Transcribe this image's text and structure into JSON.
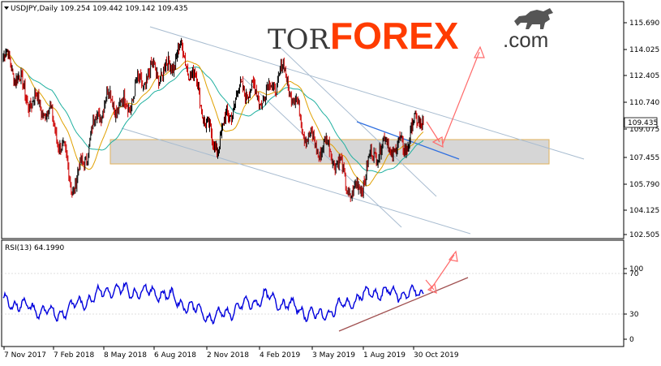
{
  "chart_data": [
    {
      "type": "candlestick",
      "symbol": "USDJPY",
      "timeframe": "Daily",
      "header": "USDJPY,Daily  109.254 109.442 109.142 109.435",
      "ohlc": {
        "open": 109.254,
        "high": 109.442,
        "low": 109.142,
        "close": 109.435
      },
      "last_price_label": "109.435",
      "ylim": [
        102.505,
        116.8
      ],
      "y_ticks": [
        "115.690",
        "114.025",
        "112.405",
        "110.740",
        "109.075",
        "107.455",
        "105.790",
        "104.125",
        "102.505"
      ],
      "x_ticks": [
        "7 Nov 2017",
        "7 Feb 2018",
        "8 May 2018",
        "6 Aug 2018",
        "2 Nov 2018",
        "4 Feb 2019",
        "3 May 2019",
        "1 Aug 2019",
        "30 Oct 2019"
      ],
      "key_prices": [
        {
          "date": "Nov 2017",
          "close": 113.0
        },
        {
          "date": "Jan 2018",
          "close": 111.0
        },
        {
          "date": "Mar 2018",
          "close": 106.0
        },
        {
          "date": "May 2018",
          "close": 110.8
        },
        {
          "date": "Aug 2018",
          "close": 111.5
        },
        {
          "date": "Oct 2018",
          "close": 114.2
        },
        {
          "date": "Jan 2019",
          "close": 108.5
        },
        {
          "date": "Mar 2019",
          "close": 111.5
        },
        {
          "date": "Apr 2019",
          "close": 112.0
        },
        {
          "date": "Jun 2019",
          "close": 108.0
        },
        {
          "date": "Aug 2019",
          "close": 105.5
        },
        {
          "date": "Sep 2019",
          "close": 108.0
        },
        {
          "date": "Oct 2019",
          "close": 109.435
        }
      ],
      "support_zone": [
        107.3,
        108.7
      ],
      "grid": false,
      "colors": {
        "bull": "#000000",
        "bear": "#cc0000",
        "ma_fast": "#e0a000",
        "ma_slow": "#20b0a0",
        "channel": "#a8bcd0",
        "trendline": "#3070e0",
        "arrow": "#ff6a6a",
        "zone": "#c8c8c8"
      }
    },
    {
      "type": "line",
      "indicator": "RSI",
      "header": "RSI(13) 64.1990",
      "period": 13,
      "last_value": 64.199,
      "ylim": [
        0,
        100
      ],
      "y_ticks": [
        "100",
        "70",
        "30",
        "0"
      ],
      "key_values": [
        {
          "date": "Nov 2017",
          "value": 55
        },
        {
          "date": "Mar 2018",
          "value": 35
        },
        {
          "date": "May 2018",
          "value": 70
        },
        {
          "date": "Oct 2018",
          "value": 66
        },
        {
          "date": "Dec 2018",
          "value": 30
        },
        {
          "date": "Apr 2019",
          "value": 60
        },
        {
          "date": "Aug 2019",
          "value": 32
        },
        {
          "date": "Sep 2019",
          "value": 66
        },
        {
          "date": "Oct 2019",
          "value": 64.199
        }
      ],
      "colors": {
        "line": "#0000dd",
        "trendline": "#a05050",
        "arrow": "#ff6a6a"
      }
    }
  ],
  "branding": {
    "logo_text_left": "TOR",
    "logo_text_mid": "FOREX",
    "logo_text_right": ".com"
  }
}
